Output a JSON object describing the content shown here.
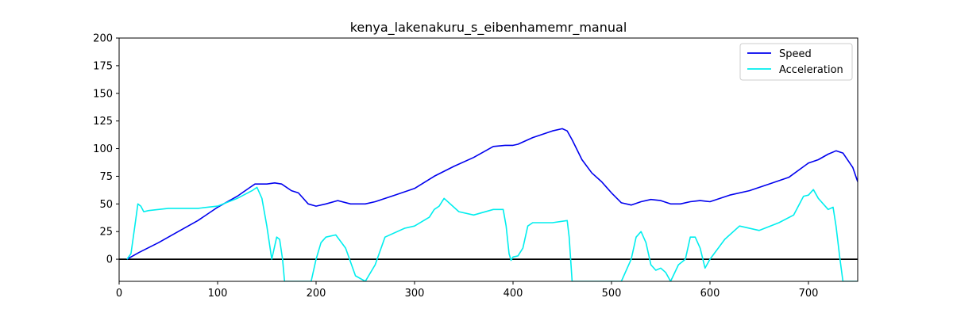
{
  "chart_data": {
    "type": "line",
    "title": "kenya_lakenakuru_s_eibenhamemr_manual",
    "xlabel": "",
    "ylabel": "",
    "xlim": [
      0,
      750
    ],
    "ylim": [
      -20,
      200
    ],
    "xticks": [
      0,
      100,
      200,
      300,
      400,
      500,
      600,
      700
    ],
    "yticks": [
      0,
      25,
      50,
      75,
      100,
      125,
      150,
      175,
      200
    ],
    "grid": false,
    "legend_position": "top-right",
    "reference_line": {
      "y": 0,
      "color": "#000000"
    },
    "series": [
      {
        "name": "Speed",
        "color": "#0000ee",
        "x": [
          8,
          10,
          20,
          40,
          60,
          80,
          100,
          120,
          133,
          138,
          145,
          150,
          158,
          165,
          175,
          182,
          192,
          200,
          210,
          222,
          235,
          250,
          260,
          280,
          300,
          320,
          340,
          360,
          380,
          392,
          400,
          405,
          420,
          440,
          450,
          455,
          460,
          470,
          480,
          490,
          500,
          510,
          520,
          530,
          540,
          550,
          560,
          570,
          580,
          590,
          600,
          620,
          640,
          660,
          680,
          700,
          710,
          720,
          728,
          735,
          745,
          750
        ],
        "y": [
          0,
          1,
          6,
          15,
          25,
          35,
          47,
          57,
          65,
          68,
          68,
          68,
          69,
          68,
          62,
          60,
          50,
          48,
          50,
          53,
          50,
          50,
          52,
          58,
          64,
          75,
          84,
          92,
          102,
          103,
          103,
          104,
          110,
          116,
          118,
          116,
          108,
          90,
          78,
          70,
          60,
          51,
          49,
          52,
          54,
          53,
          50,
          50,
          52,
          53,
          52,
          58,
          62,
          68,
          74,
          87,
          90,
          95,
          98,
          96,
          83,
          70
        ]
      },
      {
        "name": "Acceleration",
        "color": "#00eeee",
        "x": [
          8,
          12,
          16,
          19,
          22,
          25,
          30,
          50,
          80,
          100,
          120,
          135,
          140,
          145,
          150,
          155,
          160,
          163,
          166,
          168,
          180,
          190,
          195,
          200,
          205,
          210,
          220,
          230,
          240,
          250,
          260,
          270,
          290,
          300,
          315,
          320,
          325,
          330,
          345,
          360,
          380,
          390,
          393,
          396,
          398,
          400,
          405,
          410,
          415,
          420,
          440,
          455,
          457,
          460,
          510,
          520,
          525,
          530,
          535,
          540,
          545,
          550,
          555,
          560,
          568,
          575,
          580,
          585,
          590,
          595,
          600,
          615,
          630,
          650,
          670,
          685,
          695,
          700,
          705,
          710,
          720,
          725,
          728,
          732,
          735,
          740,
          750
        ],
        "y": [
          0,
          5,
          30,
          50,
          48,
          43,
          44,
          46,
          46,
          48,
          55,
          62,
          65,
          55,
          30,
          0,
          20,
          18,
          0,
          -20,
          -20,
          -20,
          -20,
          0,
          15,
          20,
          22,
          10,
          -15,
          -20,
          -5,
          20,
          28,
          30,
          38,
          45,
          48,
          55,
          43,
          40,
          45,
          45,
          30,
          5,
          -1,
          2,
          3,
          10,
          30,
          33,
          33,
          35,
          20,
          -20,
          -20,
          0,
          20,
          25,
          15,
          -5,
          -10,
          -8,
          -12,
          -20,
          -5,
          0,
          20,
          20,
          10,
          -8,
          0,
          18,
          30,
          26,
          33,
          40,
          57,
          58,
          63,
          55,
          45,
          47,
          30,
          0,
          -20,
          -20,
          -20
        ]
      }
    ]
  }
}
